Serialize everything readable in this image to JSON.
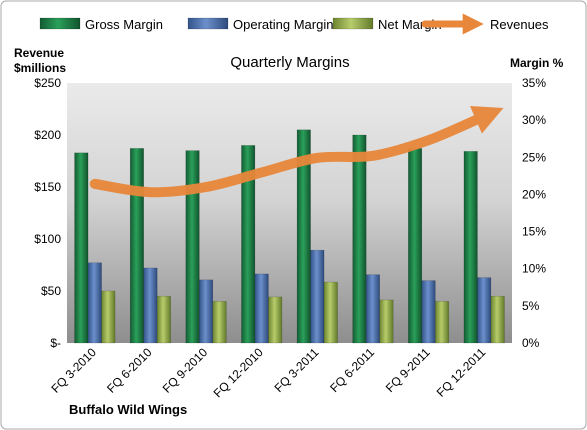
{
  "chart_data": {
    "type": "bar",
    "title": "Quarterly Margins",
    "company": "Buffalo Wild Wings",
    "ylabel_left": [
      "Revenue",
      "$millions"
    ],
    "ylabel_right": "Margin %",
    "categories": [
      "FQ 3-2010",
      "FQ 6-2010",
      "FQ 9-2010",
      "FQ 12-2010",
      "FQ 3-2011",
      "FQ 6-2011",
      "FQ 9-2011",
      "FQ 12-2011"
    ],
    "y_left_ticks": [
      "$-",
      "$50",
      "$100",
      "$150",
      "$200",
      "$250"
    ],
    "y_right_ticks": [
      "0%",
      "5%",
      "10%",
      "15%",
      "20%",
      "25%",
      "30%",
      "35%"
    ],
    "ylim_left": [
      0,
      250
    ],
    "ylim_right": [
      0,
      35
    ],
    "series": [
      {
        "name": "Gross Margin",
        "axis": "right",
        "color": "#1e7a45",
        "values": [
          25.6,
          26.2,
          25.9,
          26.6,
          28.7,
          28.0,
          26.2,
          25.8
        ]
      },
      {
        "name": "Operating Margin",
        "axis": "right",
        "color": "#4a6fae",
        "values": [
          10.8,
          10.1,
          8.5,
          9.3,
          12.5,
          9.2,
          8.4,
          8.8
        ]
      },
      {
        "name": "Net Margin",
        "axis": "right",
        "color": "#93ae4a",
        "values": [
          7.0,
          6.3,
          5.6,
          6.2,
          8.2,
          5.8,
          5.6,
          6.3
        ]
      },
      {
        "name": "Revenues",
        "axis": "left",
        "type": "line",
        "color": "#e8873a",
        "values": [
          153,
          145,
          150,
          164,
          178,
          180,
          195,
          218
        ]
      }
    ],
    "legend_position": "top",
    "grid": false
  }
}
